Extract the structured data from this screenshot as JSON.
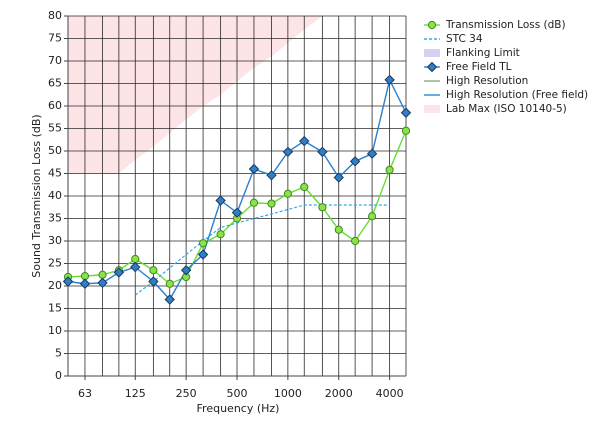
{
  "chart_data": {
    "type": "line",
    "x_label": "Frequency (Hz)",
    "y_label": "Sound Transmission Loss (dB)",
    "x": [
      50,
      63,
      80,
      100,
      125,
      160,
      200,
      250,
      315,
      400,
      500,
      630,
      800,
      1000,
      1250,
      1600,
      2000,
      2500,
      3150,
      4000,
      5000
    ],
    "xlim": [
      50,
      5000
    ],
    "x_scale": "log",
    "xticks": [
      63,
      125,
      250,
      500,
      1000,
      2000,
      4000
    ],
    "ylim": [
      0,
      80
    ],
    "yticks": [
      0,
      5,
      10,
      15,
      20,
      25,
      30,
      35,
      40,
      45,
      50,
      55,
      60,
      65,
      70,
      75,
      80
    ],
    "grid": true,
    "series": [
      {
        "name": "Transmission Loss (dB)",
        "color": "#66dd33",
        "marker": "circle",
        "marker_fill": "#8ee04a",
        "marker_stroke": "#3a8a1a",
        "values": [
          22,
          22.2,
          22.5,
          23.5,
          26,
          23.5,
          20.5,
          22,
          29.5,
          31.5,
          35,
          38.5,
          38.3,
          40.5,
          42,
          37.5,
          32.5,
          30,
          35.5,
          45.8,
          54.5
        ]
      },
      {
        "name": "STC 34",
        "color": "#33aaee",
        "dash": true,
        "values": [
          null,
          null,
          null,
          null,
          18,
          21,
          24,
          27,
          30,
          33,
          34,
          35,
          36,
          37,
          38,
          38,
          38,
          38,
          38,
          38,
          null
        ]
      },
      {
        "name": "Flanking Limit",
        "color": "#d8d0f0",
        "band": true
      },
      {
        "name": "Free Field TL",
        "color": "#2a7fcf",
        "marker": "diamond",
        "marker_fill": "#2f7fc1",
        "marker_stroke": "#1a3a6a",
        "values": [
          21,
          20.5,
          20.7,
          23,
          24.2,
          21,
          17,
          23.5,
          27,
          39,
          36.3,
          46,
          44.6,
          49.8,
          52.2,
          49.8,
          44.1,
          47.7,
          49.4,
          65.8,
          58.5
        ]
      },
      {
        "name": "High Resolution",
        "color": "#8aa888"
      },
      {
        "name": "High Resolution (Free field)",
        "color": "#2a8ad0"
      },
      {
        "name": "Lab Max (ISO 10140-5)",
        "color": "#fde4e6",
        "area": true,
        "values": [
          45,
          45,
          45,
          45,
          48,
          51,
          54,
          57,
          60,
          62.5,
          65.5,
          68.5,
          71,
          74,
          77,
          80,
          null,
          null,
          null,
          null,
          null
        ]
      }
    ]
  }
}
